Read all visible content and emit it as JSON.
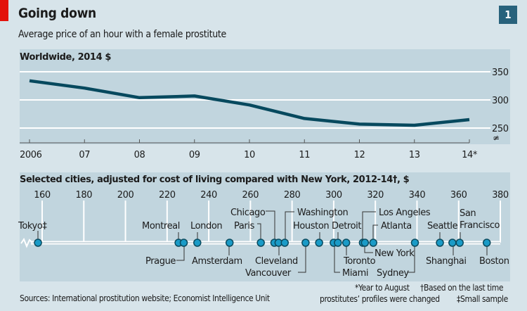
{
  "header": {
    "title": "Going down",
    "subtitle": "Average price of an hour with a female prostitute",
    "badge": "1",
    "accent_color": "#e3120b"
  },
  "chart_data": [
    {
      "type": "line",
      "title": "Worldwide, 2014 $",
      "categories": [
        "2006",
        "07",
        "08",
        "09",
        "10",
        "11",
        "12",
        "13",
        "14*"
      ],
      "series": [
        {
          "values": [
            334,
            321,
            304,
            307,
            291,
            267,
            257,
            255,
            265
          ]
        }
      ],
      "yticks": [
        250,
        300,
        350
      ],
      "ylim": [
        225,
        370
      ],
      "axis_break": true,
      "grid": true,
      "line_color": "#07495e"
    },
    {
      "type": "scatter",
      "title": "Selected cities, adjusted for cost of living compared with New York, 2012-14†, $",
      "xticks": [
        160,
        180,
        200,
        220,
        240,
        260,
        280,
        300,
        320,
        340,
        360,
        380
      ],
      "xlim": [
        155,
        380
      ],
      "axis_break": true,
      "dot_color": "#1a9bc7",
      "points": [
        {
          "label": "Tokyo‡",
          "value": 158
        },
        {
          "label": "Montreal",
          "value": 225.5
        },
        {
          "label": "Prague",
          "value": 228
        },
        {
          "label": "London",
          "value": 234.5
        },
        {
          "label": "Amsterdam",
          "value": 250
        },
        {
          "label": "Paris",
          "value": 265
        },
        {
          "label": "Chicago",
          "value": 271.5
        },
        {
          "label": "Cleveland",
          "value": 273.5
        },
        {
          "label": "Vancouver",
          "value": 276.5
        },
        {
          "label": "Washington",
          "value": 286.5
        },
        {
          "label": "Houston",
          "value": 293
        },
        {
          "label": "Miami",
          "value": 300
        },
        {
          "label": "Detroit",
          "value": 302
        },
        {
          "label": "Toronto",
          "value": 306
        },
        {
          "label": "Los Angeles",
          "value": 314
        },
        {
          "label": "New York",
          "value": 315
        },
        {
          "label": "Atlanta",
          "value": 319
        },
        {
          "label": "Sydney",
          "value": 339
        },
        {
          "label": "Seattle",
          "value": 351
        },
        {
          "label": "Shanghai",
          "value": 357
        },
        {
          "label": "San Francisco",
          "value": 360.5
        },
        {
          "label": "Boston",
          "value": 373.5
        }
      ]
    }
  ],
  "footer": {
    "sources": "Sources: International prostitution website; Economist Intelligence Unit",
    "note1": "*Year to August",
    "note2": "†Based on the last time",
    "note3": "prostitutes’ profiles were changed",
    "note4": "‡Small sample"
  }
}
